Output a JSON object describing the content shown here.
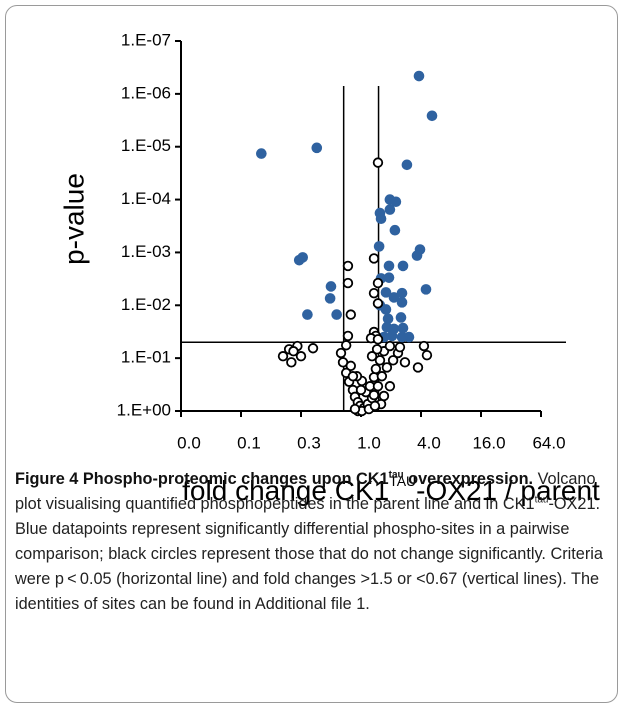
{
  "chart_data": {
    "type": "scatter",
    "ylabel": "p-value",
    "xlabel": {
      "pre": "fold change  CK1",
      "sup": "TAU",
      "post": "-OX21 / parent"
    },
    "ylog": true,
    "xlog": true,
    "ylim": [
      1,
      1e-07
    ],
    "yticks": [
      {
        "value": 1e-07,
        "label": "1.E-07"
      },
      {
        "value": 1e-06,
        "label": "1.E-06"
      },
      {
        "value": 1e-05,
        "label": "1.E-05"
      },
      {
        "value": 0.0001,
        "label": "1.E-04"
      },
      {
        "value": 0.001,
        "label": "1.E-03"
      },
      {
        "value": 0.01,
        "label": "1.E-02"
      },
      {
        "value": 0.1,
        "label": "1.E-01"
      },
      {
        "value": 1,
        "label": "1.E+00"
      }
    ],
    "xlim": [
      0.015625,
      64
    ],
    "xticks": [
      {
        "value": 0.015625,
        "label": "0.0"
      },
      {
        "value": 0.0625,
        "label": "0.1"
      },
      {
        "value": 0.25,
        "label": "0.3"
      },
      {
        "value": 1,
        "label": "1.0"
      },
      {
        "value": 4,
        "label": "4.0"
      },
      {
        "value": 16,
        "label": "16.0"
      },
      {
        "value": 64,
        "label": "64.0"
      }
    ],
    "thresholds": {
      "p": 0.05,
      "fold": [
        0.67,
        1.5
      ]
    },
    "series": [
      {
        "color": "#2f62a0",
        "marker": "filled",
        "x": [
          3.82,
          5.16,
          0.1,
          0.36,
          2.89,
          1.95,
          2.24,
          1.55,
          1.59,
          2.19,
          3.91,
          3.65,
          0.26,
          0.24,
          1.52,
          0.5,
          0.49,
          1.91,
          1.91,
          2.64,
          1.59,
          4.49,
          2.58,
          1.78,
          2.14,
          0.29,
          0.57,
          1.55,
          1.78,
          2.58,
          1.87,
          2.52,
          1.82,
          2.14,
          3.03,
          2.05,
          1.7,
          2.58,
          2.64,
          1.95
        ],
        "values": [
          4.6e-07,
          2.6e-06,
          1.35e-05,
          1.05e-05,
          2.2e-05,
          0.0001,
          0.00011,
          0.00018,
          0.00023,
          0.00038,
          0.00088,
          0.00115,
          0.00124,
          0.0014,
          0.00077,
          0.0044,
          0.0074,
          0.0018,
          0.003,
          0.0018,
          0.0031,
          0.005,
          0.0059,
          0.0057,
          0.0071,
          0.015,
          0.015,
          0.01,
          0.012,
          0.0088,
          0.018,
          0.017,
          0.026,
          0.028,
          0.04,
          0.038,
          0.04,
          0.04,
          0.027,
          0.000155
        ]
      },
      {
        "color": "#000000",
        "marker": "open",
        "x": [
          1.48,
          1.35,
          0.74,
          0.74,
          1.48,
          1.35,
          1.48,
          0.79,
          0.74,
          1.35,
          1.41,
          1.26,
          1.48,
          0.23,
          0.33,
          0.19,
          0.25,
          0.165,
          0.2,
          0.21,
          0.71,
          0.63,
          0.66,
          0.79,
          0.71,
          0.76,
          0.83,
          0.87,
          0.93,
          0.98,
          1.07,
          1.17,
          1.29,
          1.12,
          1.23,
          1.35,
          1.41,
          1.55,
          1.7,
          1.95,
          2.35,
          2.76,
          2.46,
          4.28,
          4.59,
          3.73,
          1.62,
          1.48,
          1.35,
          1.59,
          1.7,
          1.95,
          1.82,
          2.1,
          1.02,
          0.91,
          0.83,
          1.0,
          0.93,
          1.02,
          1.2,
          0.87,
          1.38,
          1.45,
          1.29
        ],
        "values": [
          2e-05,
          0.0013,
          0.0018,
          0.0038,
          0.0038,
          0.0059,
          0.0092,
          0.015,
          0.038,
          0.032,
          0.038,
          0.042,
          0.044,
          0.059,
          0.065,
          0.068,
          0.092,
          0.092,
          0.12,
          0.074,
          0.057,
          0.08,
          0.12,
          0.14,
          0.19,
          0.28,
          0.4,
          0.54,
          0.68,
          0.8,
          0.88,
          0.74,
          0.57,
          0.44,
          0.34,
          0.23,
          0.16,
          0.11,
          0.074,
          0.059,
          0.08,
          0.12,
          0.062,
          0.059,
          0.088,
          0.15,
          0.22,
          0.34,
          0.5,
          0.74,
          0.52,
          0.34,
          0.15,
          0.11,
          0.27,
          0.22,
          0.22,
          0.4,
          1.0,
          1.0,
          0.92,
          0.92,
          0.8,
          0.068,
          0.092
        ]
      }
    ]
  },
  "caption": {
    "label": "Figure 4",
    "title_pre": " Phospho-proteomic changes upon CK1",
    "title_sup": "tau",
    "title_post": " overexpression.",
    "body_pre": "Volcano plot visualising quantified phosphopeptides in the parent line and in CK1",
    "body_sup": "tau",
    "body_post": "-OX21. Blue datapoints represent significantly differential phospho-sites in a pairwise comparison; black circles represent those that do not change significantly. Criteria were p < 0.05 (horizontal line) and fold changes >1.5 or <0.67 (vertical lines). The identities of sites can be found in Additional file 1."
  }
}
